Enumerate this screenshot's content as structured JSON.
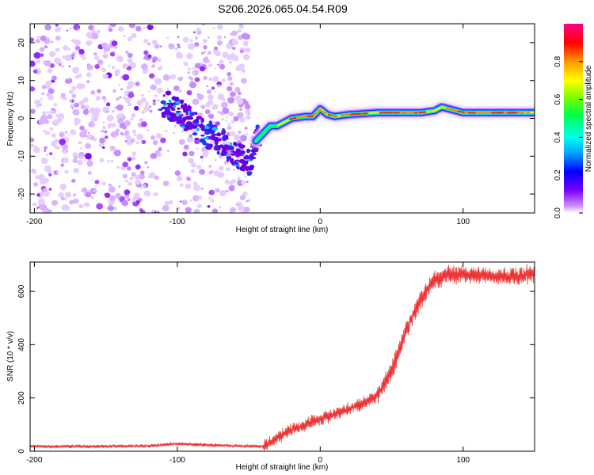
{
  "title": "S206.2026.065.04.54.R09",
  "chart_data": [
    {
      "type": "heatmap",
      "xlabel": "Height of straight line (km)",
      "ylabel": "Frequency (Hz)",
      "xlim": [
        -203,
        150
      ],
      "ylim": [
        -25,
        25
      ],
      "xticks": [
        -200,
        -100,
        0,
        100
      ],
      "yticks": [
        -20,
        -10,
        0,
        10,
        20
      ],
      "colorbar": {
        "label": "Normalized spectral amplitude",
        "range": [
          0,
          1
        ],
        "ticks": [
          0.0,
          0.2,
          0.4,
          0.6,
          0.8
        ]
      },
      "ridge": {
        "x": [
          -110,
          -100,
          -90,
          -80,
          -70,
          -60,
          -50,
          -45,
          -40,
          -35,
          -30,
          -20,
          -10,
          -5,
          0,
          5,
          10,
          20,
          40,
          60,
          70,
          80,
          85,
          90,
          100,
          110,
          120,
          130,
          150
        ],
        "y": [
          4,
          2,
          -1,
          -4,
          -6,
          -9,
          -12,
          -6,
          -4,
          -2,
          -2,
          0,
          0.5,
          0.5,
          2.5,
          1,
          0.5,
          1,
          1.5,
          1.5,
          1.5,
          2,
          3,
          2.5,
          1.5,
          1.5,
          1.5,
          1.5,
          1.5
        ]
      }
    },
    {
      "type": "line",
      "xlabel": "Height of straight line (km)",
      "ylabel": "SNR (10 * v/v)",
      "xlim": [
        -203,
        150
      ],
      "ylim": [
        0,
        710
      ],
      "xticks": [
        -200,
        -100,
        0,
        100
      ],
      "yticks": [
        0,
        200,
        400,
        600
      ],
      "color": "#ee3333",
      "series": [
        {
          "name": "SNR",
          "x": [
            -203,
            -160,
            -120,
            -100,
            -80,
            -60,
            -40,
            -38,
            -30,
            -20,
            -10,
            0,
            10,
            20,
            30,
            40,
            45,
            50,
            55,
            60,
            65,
            70,
            75,
            80,
            85,
            90,
            100,
            110,
            120,
            130,
            140,
            150
          ],
          "y": [
            18,
            18,
            20,
            28,
            24,
            20,
            18,
            25,
            50,
            80,
            100,
            120,
            140,
            160,
            180,
            210,
            250,
            300,
            380,
            450,
            510,
            570,
            610,
            640,
            655,
            660,
            660,
            665,
            660,
            655,
            660,
            665
          ]
        }
      ]
    }
  ]
}
